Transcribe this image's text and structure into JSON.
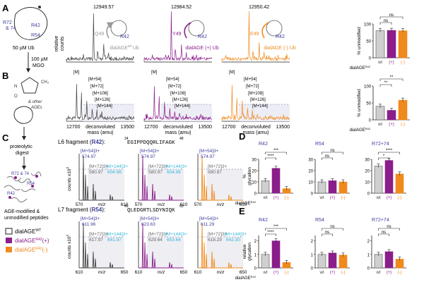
{
  "colors": {
    "wt": "#444444",
    "plus": "#8B1E8B",
    "minus": "#F08A1C",
    "blue": "#3D3D9E",
    "cyan": "#32B6D6",
    "gray": "#9A9A9A"
  },
  "panel_labels": [
    "A",
    "B",
    "C",
    "D",
    "E"
  ],
  "panelA": {
    "residues": [
      "R72",
      "& 74",
      "R42",
      "R54"
    ],
    "conc": "50 µM Ub",
    "reagent_conc": "100 µM",
    "reagent": "MGO",
    "ylabel": [
      "relative",
      "counts"
    ],
    "spectra": [
      {
        "peak": "12949.57",
        "residue": "Q49",
        "residue2": "R42",
        "title_base": "dialAGE",
        "title_sup": "wt",
        "title_tail": " Ub"
      },
      {
        "peak": "12984.52",
        "residue": "Y49",
        "residue2": "R42",
        "title_base": "dialAGE (+) Ub",
        "title_sup": "",
        "title_tail": ""
      },
      {
        "peak": "12950.42",
        "residue": "E49",
        "residue2": "R42",
        "title_base": "dialAGE (-) Ub",
        "title_sup": "",
        "title_tail": ""
      }
    ],
    "bar": {
      "ylabel": "% unmodified",
      "ticks": [
        "0",
        "50",
        "100"
      ],
      "values": [
        80,
        81,
        80
      ],
      "sig": [
        "ns",
        "ns"
      ],
      "cats": [
        "wt",
        "(+)",
        "(-)"
      ],
      "catlabel": "dialAGE",
      "catlabel_sup": "R42"
    }
  },
  "panelB": {
    "ages_text": [
      "& other",
      "AGEs"
    ],
    "peak_labels": [
      "[M]",
      "[M+54]",
      "[M+72]",
      "[M+108]",
      "[M+126]",
      "[M+144]"
    ],
    "ticks": [
      "12700",
      "13500"
    ],
    "xlabel": [
      "deconvoluted",
      "mass (amu)"
    ],
    "bar": {
      "ylabel": "% unmodified",
      "ticks": [
        "0",
        "50",
        "100"
      ],
      "values": [
        40,
        28,
        58
      ],
      "sig": [
        "**",
        "**"
      ],
      "cats": [
        "wt",
        "(+)",
        "(-)"
      ],
      "catlabel": "dialAGE",
      "catlabel_sup": "R42"
    }
  },
  "panelC": {
    "flow": [
      "proteolytic",
      "digest"
    ],
    "labels": [
      "R72 & 74",
      "R54",
      "R42"
    ],
    "caption": [
      "AGE-modified &",
      "unmodified peptides"
    ],
    "legend": [
      {
        "base": "dialAGE",
        "sup": "WT",
        "tail": ""
      },
      {
        "base": "dialAGE",
        "sup": "R42",
        "tail": "(+)"
      },
      {
        "base": "dialAGE",
        "sup": "R42",
        "tail": "(-)"
      }
    ],
    "frag1": {
      "prefix": "L6 fragment (",
      "residue": "R42",
      "suffix": "):",
      "num_start": "34",
      "num_end": "48",
      "sequence": "EGIPPDQQRLIFAGK",
      "ylabel": [
        "counts x10",
        "3"
      ],
      "xlabel": "m/z",
      "spectra": [
        {
          "m54": "[M+54]3+",
          "m54v": "574.97",
          "m72": "[M+72]3+",
          "m72v": "580.97",
          "m144": "[M+144]3+",
          "m144v": "604.98",
          "ticks": [
            "570",
            "610"
          ]
        },
        {
          "m54": "[M+54]3+",
          "m54v": "574.97",
          "m72": "[M+72]3+",
          "m72v": "580.97",
          "m144": "[M+144]3+",
          "m144v": "604.98",
          "ticks": [
            "570",
            "610"
          ]
        },
        {
          "m54": "[M+54]3+",
          "m54v": "574.97",
          "m72": "[M+72]3+",
          "m72v": "580.97",
          "m144": "",
          "m144v": "",
          "ticks": [
            "570",
            "610"
          ]
        }
      ]
    },
    "frag2": {
      "prefix": "L7 fragment (",
      "residue": "R54",
      "suffix": "):",
      "num_start": "49",
      "num_end": "63",
      "sequence": "QLEDGRTLSDYNIQK",
      "ylabel": [
        "counts x10",
        "3"
      ],
      "xlabel": "m/z",
      "spectra": [
        {
          "m54": "[M+54]3+",
          "m54v": "611.96",
          "m72": "[M+72]3+",
          "m72v": "617.97",
          "m144": "[M+144]3+",
          "m144v": "641.97",
          "ticks": [
            "610",
            "650"
          ]
        },
        {
          "m54": "[M+54]3+",
          "m54v": "623.63",
          "m72": "[M+72]3+",
          "m72v": "629.64",
          "m144": "[M+144]3+",
          "m144v": "653.64",
          "ticks": [
            "610",
            "650"
          ]
        },
        {
          "m54": "[M+54]3+",
          "m54v": "611.29",
          "m72": "[M+72]3+",
          "m72v": "618.29",
          "m144": "[M+144]3+",
          "m144v": "642.30",
          "ticks": [
            "610",
            "650"
          ]
        }
      ]
    }
  },
  "panelD": {
    "ylabel": [
      "%",
      "glycation"
    ],
    "groups": [
      {
        "title": "R42",
        "values": [
          11,
          22,
          4
        ],
        "ticks": [
          "0",
          "10",
          "20",
          "30"
        ],
        "sig": [
          "***",
          "****"
        ]
      },
      {
        "title": "R54",
        "values": [
          10,
          11,
          10
        ],
        "ticks": [
          "0",
          "10",
          "20",
          "30"
        ],
        "sig": [
          "ns",
          "ns"
        ]
      },
      {
        "title": "R72+74",
        "values": [
          24,
          29,
          17
        ],
        "ticks": [
          "0",
          "10",
          "20",
          "30"
        ],
        "sig": [
          "****",
          "*"
        ]
      }
    ],
    "cats": [
      "wt",
      "(+)",
      "(-)"
    ],
    "catlabel": "dialAGE",
    "catlabel_sup": "R42"
  },
  "panelE": {
    "ylabel": [
      "relative",
      "glycation"
    ],
    "groups": [
      {
        "title": "R42",
        "values": [
          1.0,
          2.0,
          0.4
        ],
        "ticks": [
          "0",
          "1",
          "2"
        ],
        "sig": [
          "***",
          "****"
        ]
      },
      {
        "title": "R54",
        "values": [
          1.0,
          1.1,
          0.95
        ],
        "ticks": [
          "0",
          "1",
          "2"
        ],
        "sig": [
          "ns",
          "ns"
        ]
      },
      {
        "title": "R72+74",
        "values": [
          1.0,
          1.2,
          0.65
        ],
        "ticks": [
          "0",
          "1",
          "2"
        ],
        "sig": [
          "ns",
          "ns"
        ]
      }
    ],
    "cats": [
      "wt",
      "(+)",
      "(-)"
    ],
    "catlabel": "dialAGE",
    "catlabel_sup": "R42"
  }
}
